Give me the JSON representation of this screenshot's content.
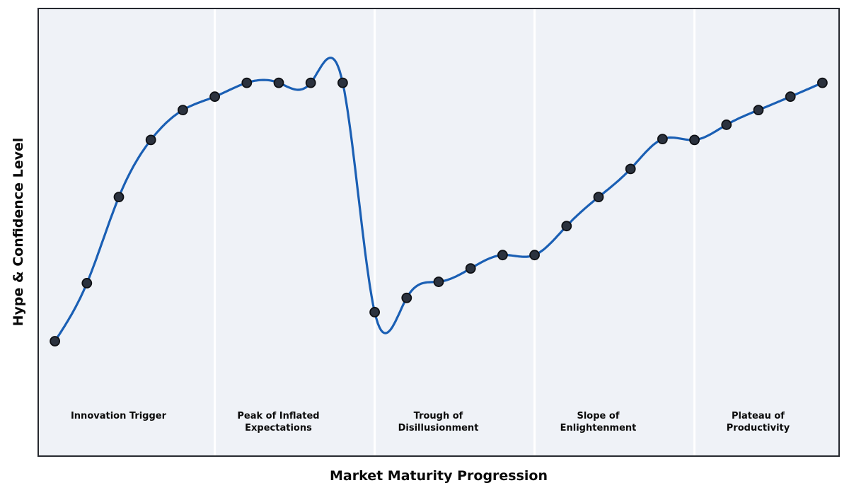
{
  "figure": {
    "background": "#ffffff",
    "panel_background": "#eff2f7",
    "frame_color": "#26292f",
    "divider_color": "#ffffff",
    "text_color": "#0a0a0a"
  },
  "chart_data": {
    "type": "line",
    "title": "",
    "xlabel": "Market Maturity Progression",
    "ylabel": "Hype & Confidence Level",
    "x": [
      0,
      1,
      2,
      3,
      4,
      5,
      6,
      7,
      8,
      9,
      10,
      11,
      12,
      13,
      14,
      15,
      16,
      17,
      18,
      19,
      20,
      21,
      22,
      23,
      24
    ],
    "values": [
      25.6,
      38.6,
      57.9,
      70.7,
      77.4,
      80.4,
      83.5,
      83.5,
      83.5,
      83.5,
      32.1,
      35.3,
      38.9,
      41.9,
      44.9,
      44.9,
      51.4,
      57.9,
      64.2,
      70.9,
      70.7,
      74.1,
      77.4,
      80.4,
      83.5
    ],
    "xlim": [
      -0.5,
      24.5
    ],
    "ylim": [
      0,
      100
    ],
    "grid": false,
    "legend": null,
    "axis_ticks": "none",
    "smoothing": "natural-cubic-spline",
    "line_color": "#1a5fb4",
    "line_width": 3.2,
    "marker_color": "#2b323e",
    "marker_edge_color": "#0e1014",
    "marker_radius": 6.5,
    "phase_dividers_x": [
      5,
      10,
      15,
      20
    ],
    "phases": [
      {
        "label": "Innovation Trigger",
        "center_x": 2
      },
      {
        "label": "Peak of Inflated\nExpectations",
        "center_x": 7
      },
      {
        "label": "Trough of\nDisillusionment",
        "center_x": 12
      },
      {
        "label": "Slope of\nEnlightenment",
        "center_x": 17
      },
      {
        "label": "Plateau of\nProductivity",
        "center_x": 22
      }
    ]
  }
}
